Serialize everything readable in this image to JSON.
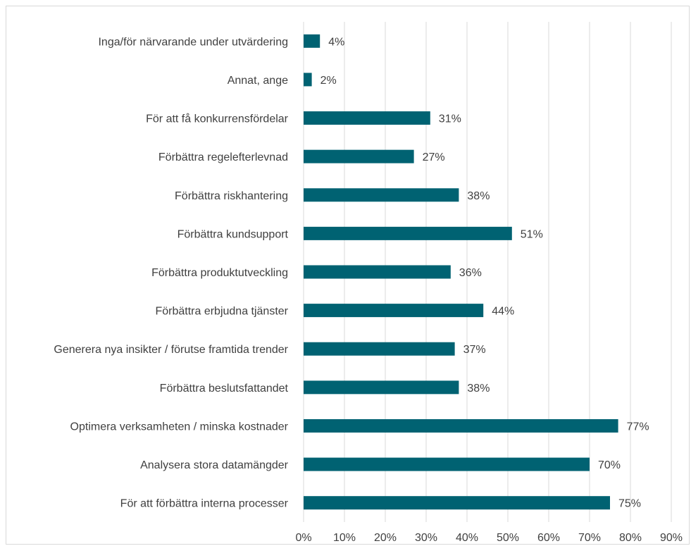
{
  "chart_data": {
    "type": "bar",
    "orientation": "horizontal",
    "title": "",
    "xlabel": "",
    "ylabel": "",
    "categories": [
      "Inga/för närvarande under utvärdering",
      "Annat, ange",
      "För att få konkurrensfördelar",
      "Förbättra regelefterlevnad",
      "Förbättra riskhantering",
      "Förbättra kundsupport",
      "Förbättra produktutveckling",
      "Förbättra erbjudna tjänster",
      "Generera nya insikter / förutse framtida trender",
      "Förbättra beslutsfattandet",
      "Optimera verksamheten / minska kostnader",
      "Analysera stora datamängder",
      "För att förbättra interna processer"
    ],
    "values": [
      4,
      2,
      31,
      27,
      38,
      51,
      36,
      44,
      37,
      38,
      77,
      70,
      75
    ],
    "value_labels": [
      "4%",
      "2%",
      "31%",
      "27%",
      "38%",
      "51%",
      "36%",
      "44%",
      "37%",
      "38%",
      "77%",
      "70%",
      "75%"
    ],
    "xlim": [
      0,
      90
    ],
    "x_ticks": [
      "0%",
      "10%",
      "20%",
      "30%",
      "40%",
      "50%",
      "60%",
      "70%",
      "80%",
      "90%"
    ],
    "grid": true,
    "legend": "none",
    "bar_color": "#006272",
    "grid_color": "#d9d9d9"
  }
}
